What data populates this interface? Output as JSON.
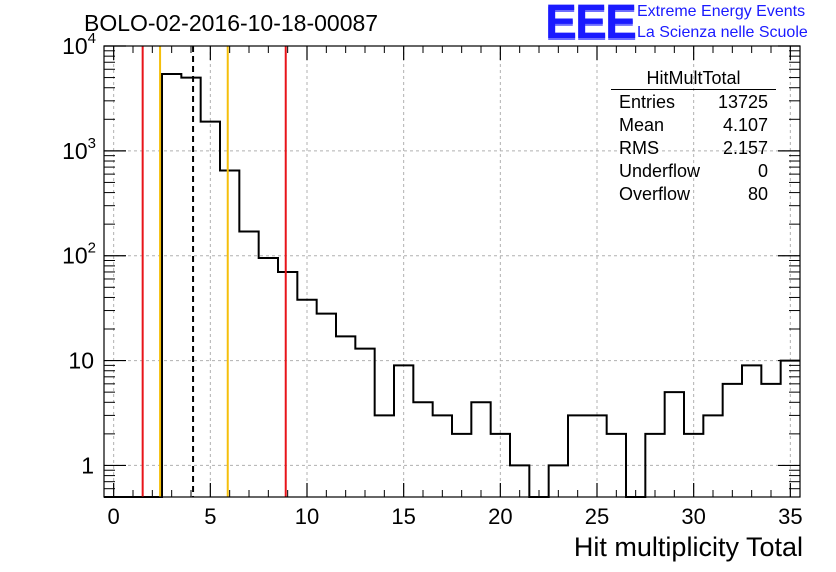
{
  "header": {
    "title": "BOLO-02-2016-10-18-00087",
    "logo_text": "EEE",
    "logo_line1": "Extreme Energy Events",
    "logo_line2": "La Scienza nelle Scuole"
  },
  "stats_box": {
    "title": "HitMultTotal",
    "rows": [
      {
        "label": "Entries",
        "value": "13725"
      },
      {
        "label": "Mean",
        "value": "4.107"
      },
      {
        "label": "RMS",
        "value": "2.157"
      },
      {
        "label": "Underflow",
        "value": "0"
      },
      {
        "label": "Overflow",
        "value": "80"
      }
    ]
  },
  "colors": {
    "histogram": "#000000",
    "red_line": "#e8141a",
    "yellow_line": "#f5bf0a",
    "grid": "#b0b0b0"
  },
  "chart_data": {
    "type": "histogram",
    "title": "BOLO-02-2016-10-18-00087",
    "xlabel": "Hit multiplicity Total",
    "ylabel": "",
    "xlim": [
      -0.5,
      35.5
    ],
    "ylim": [
      0.5,
      10000
    ],
    "yscale": "log",
    "grid": true,
    "x_ticks": [
      0,
      5,
      10,
      15,
      20,
      25,
      30,
      35
    ],
    "x_tick_labels": [
      "0",
      "5",
      "10",
      "15",
      "20",
      "25",
      "30",
      "35"
    ],
    "y_ticks": [
      1,
      10,
      100,
      1000,
      10000
    ],
    "y_tick_labels": [
      "1",
      "10",
      "10²",
      "10³",
      "10⁴"
    ],
    "bin_edges_start": -0.5,
    "bin_width": 1,
    "counts": [
      0,
      0,
      0,
      5400,
      5000,
      1900,
      650,
      170,
      95,
      70,
      38,
      28,
      17,
      13,
      3,
      9,
      4,
      3,
      2,
      4,
      2,
      1,
      0,
      1,
      3,
      3,
      2,
      0,
      2,
      5,
      2,
      3,
      6,
      9,
      6,
      10
    ],
    "vertical_lines": [
      {
        "x": 1.5,
        "color": "red",
        "style": "solid"
      },
      {
        "x": 2.4,
        "color": "yellow",
        "style": "solid"
      },
      {
        "x": 4.107,
        "color": "black",
        "style": "dashed"
      },
      {
        "x": 5.9,
        "color": "yellow",
        "style": "solid"
      },
      {
        "x": 8.9,
        "color": "red",
        "style": "solid"
      }
    ]
  }
}
